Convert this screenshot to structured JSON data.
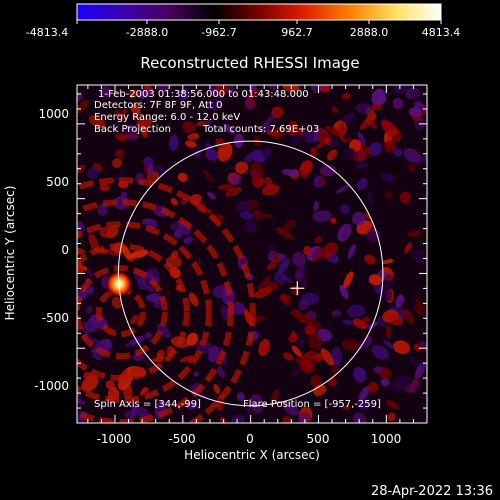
{
  "colorbar": {
    "tick_labels": [
      "-4813.4",
      "-2888.0",
      "-962.7",
      "962.7",
      "2888.0",
      "4813.4"
    ],
    "min": -4813.4,
    "max": 4813.4,
    "colors": [
      "#1a00ff",
      "#3a00b0",
      "#4a0060",
      "#000000",
      "#7a0000",
      "#e02000",
      "#ff8000",
      "#ffe060",
      "#ffffff"
    ]
  },
  "title": "Reconstructed RHESSI Image",
  "annotations": {
    "line1": "1-Feb-2003 01:38:56.000 to 01:43:48.000",
    "line2": "Detectors: 7F 8F 9F, Att 0",
    "line3": "Energy Range: 6.0 - 12.0 keV",
    "line4_left": "Back Projection",
    "line4_right": "Total counts: 7.69E+03",
    "spin_axis": "Spin Axis = [344,-99]",
    "flare_position": "Flare Position = [-957,-259]"
  },
  "footer": {
    "timestamp": "28-Apr-2022 13:36"
  },
  "chart_data": {
    "type": "heatmap",
    "title": "Reconstructed RHESSI Image",
    "xlabel": "Heliocentric X (arcsec)",
    "ylabel": "Heliocentric Y (arcsec)",
    "xlim": [
      -1280,
      1300
    ],
    "ylim": [
      -1000,
      1260
    ],
    "xticks": [
      -1000,
      -500,
      0,
      500,
      1000
    ],
    "yticks": [
      -1000,
      -500,
      0,
      500,
      1000
    ],
    "xtick_labels": [
      "-1000",
      "-500",
      "0",
      "500",
      "1000"
    ],
    "ytick_labels": [
      "-1000",
      "-500",
      "0",
      "500",
      "1000"
    ],
    "colorbar_range": [
      -4813.4,
      4813.4
    ],
    "solar_disk": {
      "center": [
        0,
        0
      ],
      "radius_arcsec": 975
    },
    "flare_position": [
      -957,
      -259
    ],
    "spin_axis": [
      344,
      -99
    ],
    "grid": false
  }
}
